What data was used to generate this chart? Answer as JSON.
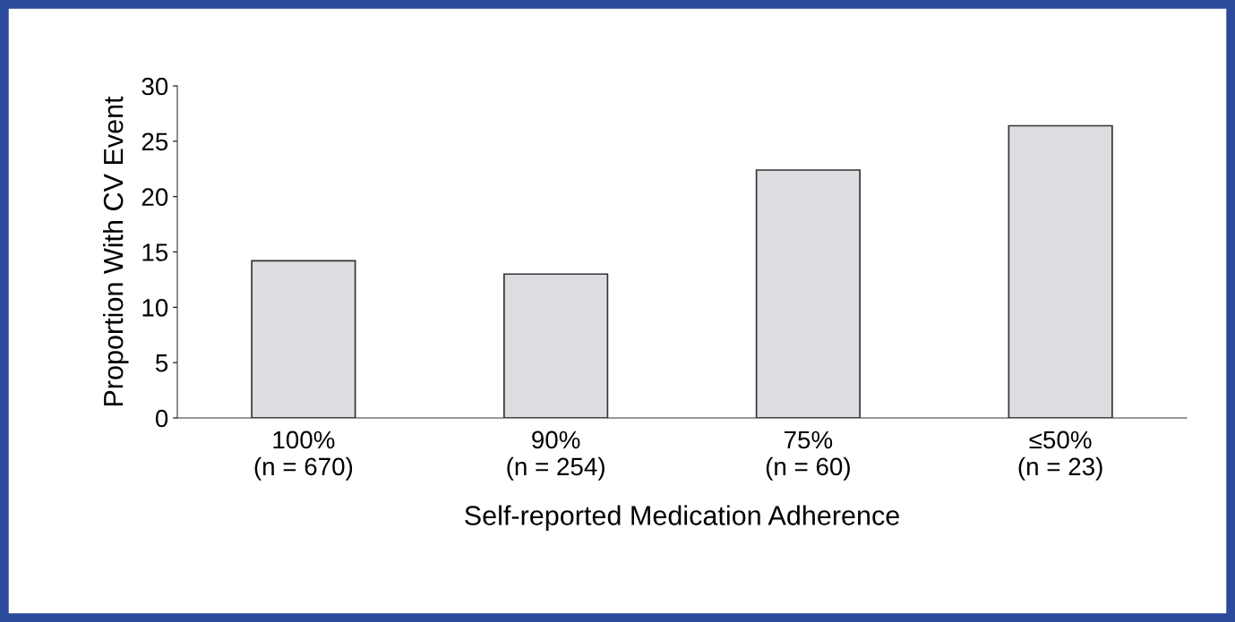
{
  "chart_data": {
    "type": "bar",
    "categories": [
      "100%\n(n = 670)",
      "90%\n(n = 254)",
      "75%\n(n = 60)",
      "≤50%\n(n = 23)"
    ],
    "values": [
      14.2,
      13.0,
      22.4,
      26.4
    ],
    "color": "#dcdde0",
    "xlabel": "Self-reported Medication Adherence",
    "ylabel": "Proportion With CV Event",
    "ylim": [
      0,
      30
    ],
    "yticks": [
      0,
      5,
      10,
      15,
      20,
      25,
      30
    ],
    "grid": false,
    "legend": false
  }
}
